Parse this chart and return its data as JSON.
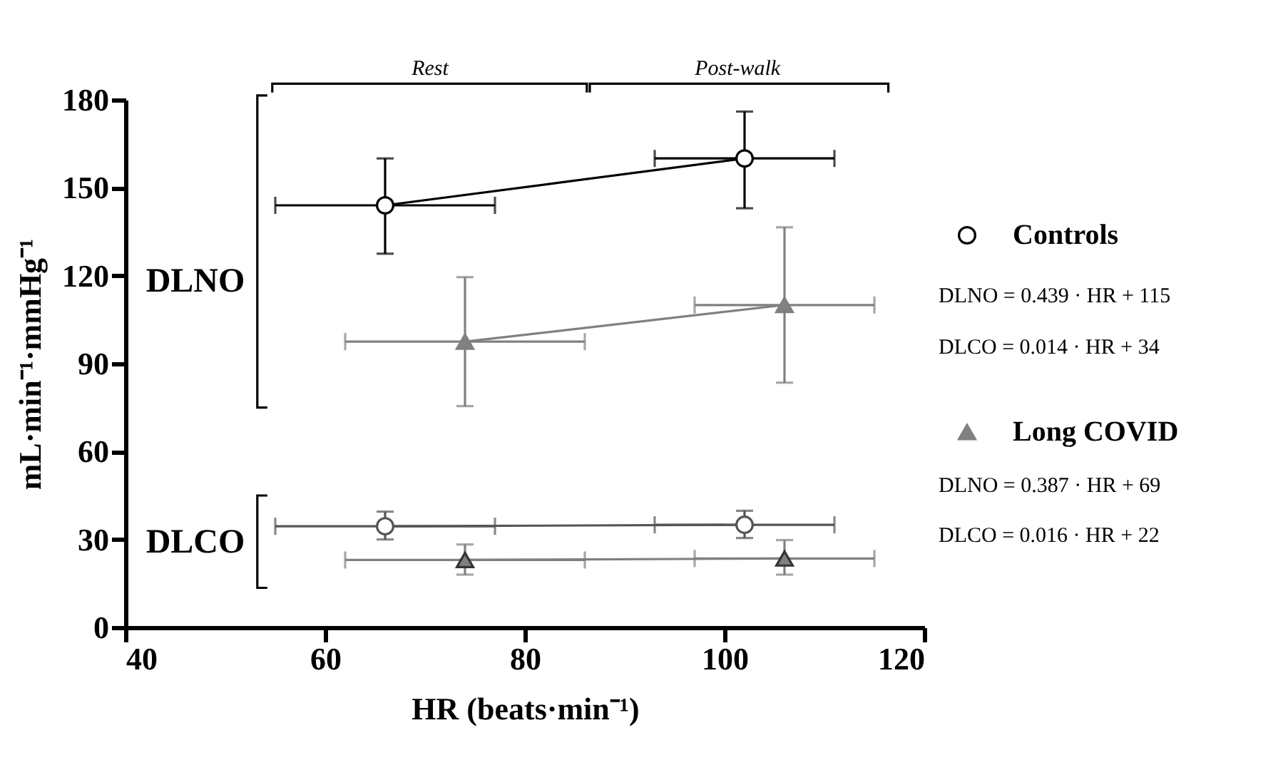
{
  "chart_data": {
    "type": "line",
    "xlabel": "HR (beats·min⁻¹)",
    "ylabel": "mL·min⁻¹·mmHg⁻¹",
    "xlim": [
      40,
      120
    ],
    "xticks": [
      40,
      60,
      80,
      100,
      120
    ],
    "ylim": [
      0,
      180
    ],
    "yticks": [
      0,
      30,
      60,
      90,
      120,
      150,
      180
    ],
    "grid": false,
    "legend": "right",
    "series": [
      {
        "name": "Controls",
        "color": "#000000",
        "marker": "circle",
        "x": [
          66,
          102
        ],
        "values": [
          144,
          160
        ],
        "errors": [
          [
            127.5,
            160
          ],
          [
            143,
            176
          ]
        ],
        "xerrors": [
          [
            55,
            77
          ],
          [
            93,
            111
          ]
        ]
      },
      {
        "color": "#555555",
        "marker": "circle",
        "x": [
          66,
          102
        ],
        "values": [
          34.5,
          35
        ],
        "errors": [
          [
            30,
            39.5
          ],
          [
            30.5,
            39.8
          ]
        ],
        "xerrors": [
          [
            55,
            77
          ],
          [
            93,
            111
          ]
        ]
      },
      {
        "name": "Long COVID",
        "color": "#808080",
        "marker": "triangle",
        "x": [
          74,
          106
        ],
        "values": [
          97.5,
          110
        ],
        "errors": [
          [
            75.5,
            119.5
          ],
          [
            83.5,
            136.5
          ]
        ],
        "xerrors": [
          [
            62,
            86
          ],
          [
            97,
            115
          ]
        ]
      },
      {
        "color": "#808080",
        "marker": "triangle",
        "x": [
          74,
          106
        ],
        "values": [
          23,
          23.5
        ],
        "errors": [
          [
            18,
            28.3
          ],
          [
            18,
            29.8
          ]
        ],
        "xerrors": [
          [
            62,
            86
          ],
          [
            97,
            115
          ]
        ]
      }
    ],
    "annotations": [
      "Rest",
      "Post-walk",
      "DLNO",
      "DLCO",
      "DLNO = 0.439 · HR + 115",
      "DLCO = 0.014 · HR + 34",
      "DLNO = 0.387 · HR + 69",
      "DLCO = 0.016 · HR + 22"
    ]
  }
}
